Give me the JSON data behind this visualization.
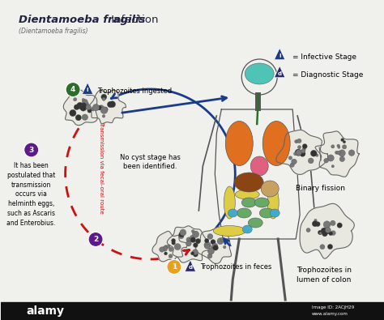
{
  "title_italic": "Dientamoeba fragilis",
  "title_normal": " Infection",
  "subtitle": "(Dientamoeba fragilis)",
  "bg_color": "#f0f0ec",
  "bottom_bar_color": "#111111",
  "bottom_bar_text": "alamy",
  "labels": {
    "step1": "Trophozoites in feces",
    "step3_text": "It has been\npostulated that\ntransmission\noccurs via\nhelminth eggs,\nsuch as Ascaris\nand Enterobius.",
    "step4": "Trophozoites ingested",
    "no_cyst": "No cyst stage has\nbeen identified.",
    "fecal_oral": "Transmission via fecal-oral route",
    "binary_fission": "Binary fission",
    "trophozoites_colon": "Trophozoites in\nlumen of colon",
    "infective": "= Infective Stage",
    "diagnostic": "= Diagnostic Stage"
  },
  "colors": {
    "step_green": "#2d6e2d",
    "step_purple": "#5c1a8a",
    "step_yellow": "#e8a020",
    "arrow_blue": "#1a3a8a",
    "arrow_red": "#cc1111",
    "tri_blue": "#1a3a8a",
    "tri_dark": "#2a2a6a",
    "body_outline": "#555555",
    "brain": "#3dbfb0",
    "lung": "#e07020",
    "heart": "#e06080",
    "liver": "#8b4513",
    "stomach": "#c8a060",
    "intestine_small": "#66aa66",
    "intestine_large": "#ddcc44",
    "intestine_detail": "#44aacc",
    "cell_fill": "#e8e8e0",
    "cell_edge": "#666666",
    "dot_dark": "#333333",
    "dot_mid": "#777777"
  }
}
